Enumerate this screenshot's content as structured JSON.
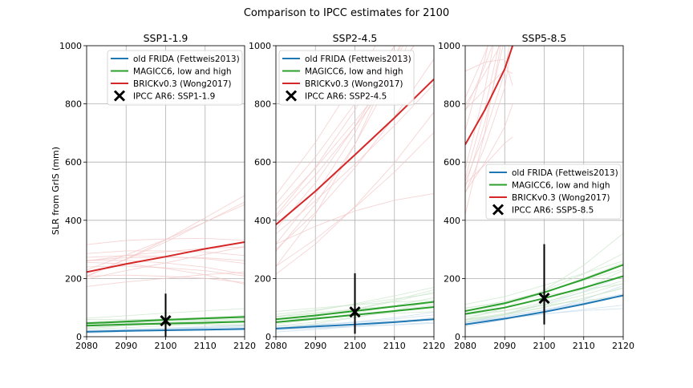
{
  "figure_title": "Comparison to IPCC estimates for 2100",
  "colors": {
    "old_frida": "#1f77b4",
    "magicc": "#2ca02c",
    "brick": "#d62728",
    "ensemble_brick": "#f3c5c6",
    "ensemble_magicc": "#cbe6cb",
    "ensemble_frida": "#c5dcee",
    "grid": "#b0b0b0"
  },
  "chart_data": [
    {
      "type": "line",
      "title": "SSP1-1.9",
      "xlabel": "",
      "ylabel": "SLR from GrIS (mm)",
      "xlim": [
        2080,
        2120
      ],
      "ylim": [
        0,
        1000
      ],
      "xticks": [
        2080,
        2090,
        2100,
        2110,
        2120
      ],
      "yticks": [
        0,
        200,
        400,
        600,
        800,
        1000
      ],
      "grid": true,
      "legend_position": "top-right",
      "x": [
        2080,
        2090,
        2100,
        2110,
        2120
      ],
      "series": [
        {
          "name": "old FRIDA (Fettweis2013)",
          "color_key": "old_frida",
          "values": [
            17,
            20,
            22,
            24,
            27
          ]
        },
        {
          "name": "MAGICC6, low and high",
          "color_key": "magicc",
          "values": [
            38,
            42,
            45,
            48,
            52
          ]
        },
        {
          "name": "",
          "color_key": "magicc",
          "values": [
            46,
            52,
            58,
            63,
            68
          ]
        },
        {
          "name": "BRICKv0.3 (Wong2017)",
          "color_key": "brick",
          "values": [
            222,
            250,
            275,
            302,
            325
          ]
        }
      ],
      "ipcc": {
        "label": "IPCC AR6: SSP1-1.9",
        "x": 2100,
        "value": 55,
        "low": 0,
        "high": 148
      }
    },
    {
      "type": "line",
      "title": "SSP2-4.5",
      "xlabel": "",
      "ylabel": "",
      "xlim": [
        2080,
        2120
      ],
      "ylim": [
        0,
        1000
      ],
      "xticks": [
        2080,
        2090,
        2100,
        2110,
        2120
      ],
      "yticks": [
        0,
        200,
        400,
        600,
        800,
        1000
      ],
      "grid": true,
      "legend_position": "top-left",
      "x": [
        2080,
        2090,
        2100,
        2110,
        2120
      ],
      "series": [
        {
          "name": "old FRIDA (Fettweis2013)",
          "color_key": "old_frida",
          "values": [
            28,
            35,
            42,
            50,
            60
          ]
        },
        {
          "name": "MAGICC6, low and high",
          "color_key": "magicc",
          "values": [
            50,
            62,
            75,
            88,
            102
          ]
        },
        {
          "name": "",
          "color_key": "magicc",
          "values": [
            60,
            73,
            88,
            104,
            120
          ]
        },
        {
          "name": "BRICKv0.3 (Wong2017)",
          "color_key": "brick",
          "values": [
            385,
            500,
            625,
            752,
            885
          ]
        }
      ],
      "ipcc": {
        "label": "IPCC AR6: SSP2-4.5",
        "x": 2100,
        "value": 85,
        "low": 10,
        "high": 218
      }
    },
    {
      "type": "line",
      "title": "SSP5-8.5",
      "xlabel": "",
      "ylabel": "",
      "xlim": [
        2080,
        2120
      ],
      "ylim": [
        0,
        1000
      ],
      "xticks": [
        2080,
        2090,
        2100,
        2110,
        2120
      ],
      "yticks": [
        0,
        200,
        400,
        600,
        800,
        1000
      ],
      "grid": true,
      "legend_position": "center-right",
      "x": [
        2080,
        2090,
        2100,
        2110,
        2120
      ],
      "series": [
        {
          "name": "old FRIDA (Fettweis2013)",
          "color_key": "old_frida",
          "values": [
            42,
            62,
            85,
            112,
            142
          ]
        },
        {
          "name": "MAGICC6, low and high",
          "color_key": "magicc",
          "values": [
            78,
            100,
            132,
            168,
            208
          ]
        },
        {
          "name": "",
          "color_key": "magicc",
          "values": [
            88,
            115,
            152,
            197,
            247
          ]
        },
        {
          "name": "BRICKv0.3 (Wong2017)",
          "color_key": "brick",
          "x": [
            2080,
            2085,
            2090,
            2092
          ],
          "values": [
            660,
            780,
            920,
            1000
          ]
        }
      ],
      "ipcc": {
        "label": "IPCC AR6: SSP5-8.5",
        "x": 2100,
        "value": 132,
        "low": 42,
        "high": 318
      }
    }
  ]
}
